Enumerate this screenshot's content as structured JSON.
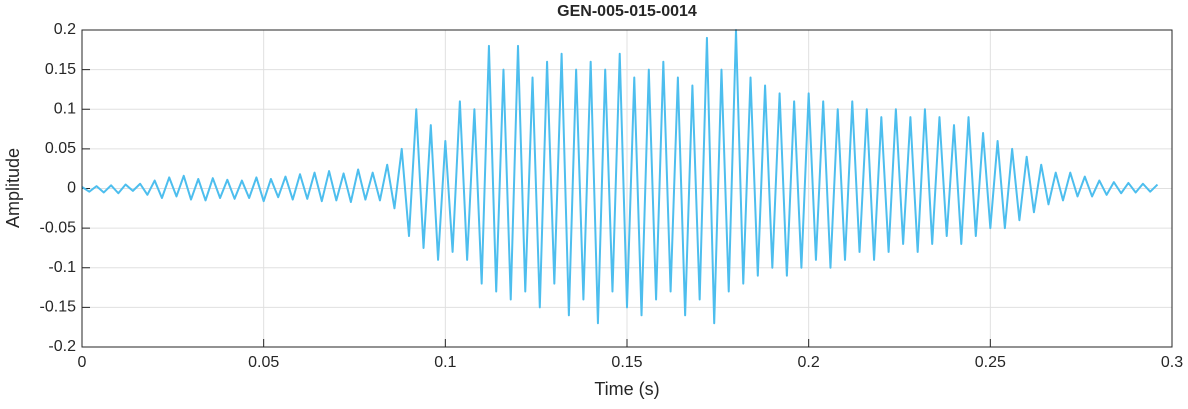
{
  "chart_data": {
    "type": "line",
    "title": "GEN-005-015-0014",
    "x_label": "Time (s)",
    "y_label": "Amplitude",
    "xlim": [
      0,
      0.3
    ],
    "xticks": [
      0,
      0.05,
      0.1,
      0.15,
      0.2,
      0.25,
      0.3
    ],
    "ylim": [
      -0.2,
      0.2
    ],
    "yticks": [
      -0.2,
      -0.15,
      -0.1,
      -0.05,
      0,
      0.05,
      0.1,
      0.15,
      0.2
    ],
    "grid": true,
    "x": [
      0,
      0.002,
      0.004,
      0.006,
      0.008,
      0.01,
      0.012,
      0.014,
      0.016,
      0.018,
      0.02,
      0.022,
      0.024,
      0.026,
      0.028,
      0.03,
      0.032,
      0.034,
      0.036,
      0.038,
      0.04,
      0.042,
      0.044,
      0.046,
      0.048,
      0.05,
      0.052,
      0.054,
      0.056,
      0.058,
      0.06,
      0.062,
      0.064,
      0.066,
      0.068,
      0.07,
      0.072,
      0.074,
      0.076,
      0.078,
      0.08,
      0.082,
      0.084,
      0.086,
      0.088,
      0.09,
      0.092,
      0.094,
      0.096,
      0.098,
      0.1,
      0.102,
      0.104,
      0.106,
      0.108,
      0.11,
      0.112,
      0.114,
      0.116,
      0.118,
      0.12,
      0.122,
      0.124,
      0.126,
      0.128,
      0.13,
      0.132,
      0.134,
      0.136,
      0.138,
      0.14,
      0.142,
      0.144,
      0.146,
      0.148,
      0.15,
      0.152,
      0.154,
      0.156,
      0.158,
      0.16,
      0.162,
      0.164,
      0.166,
      0.168,
      0.17,
      0.172,
      0.174,
      0.176,
      0.178,
      0.18,
      0.182,
      0.184,
      0.186,
      0.188,
      0.19,
      0.192,
      0.194,
      0.196,
      0.198,
      0.2,
      0.202,
      0.204,
      0.206,
      0.208,
      0.21,
      0.212,
      0.214,
      0.216,
      0.218,
      0.22,
      0.222,
      0.224,
      0.226,
      0.228,
      0.23,
      0.232,
      0.234,
      0.236,
      0.238,
      0.24,
      0.242,
      0.244,
      0.246,
      0.248,
      0.25,
      0.252,
      0.254,
      0.256,
      0.258,
      0.26,
      0.262,
      0.264,
      0.266,
      0.268,
      0.27,
      0.272,
      0.274,
      0.276,
      0.278,
      0.28,
      0.282,
      0.284,
      0.286,
      0.288,
      0.29,
      0.292,
      0.294,
      0.296
    ],
    "series": [
      {
        "color": "#4dbeee",
        "values": [
          0.002,
          -0.004,
          0.003,
          -0.005,
          0.004,
          -0.006,
          0.005,
          -0.003,
          0.006,
          -0.008,
          0.01,
          -0.012,
          0.014,
          -0.01,
          0.016,
          -0.014,
          0.012,
          -0.015,
          0.013,
          -0.012,
          0.011,
          -0.013,
          0.01,
          -0.012,
          0.014,
          -0.016,
          0.012,
          -0.011,
          0.015,
          -0.014,
          0.018,
          -0.013,
          0.02,
          -0.016,
          0.022,
          -0.015,
          0.019,
          -0.017,
          0.024,
          -0.014,
          0.02,
          -0.015,
          0.03,
          -0.025,
          0.05,
          -0.06,
          0.1,
          -0.075,
          0.08,
          -0.09,
          0.06,
          -0.08,
          0.11,
          -0.09,
          0.1,
          -0.12,
          0.18,
          -0.13,
          0.15,
          -0.14,
          0.18,
          -0.13,
          0.14,
          -0.15,
          0.16,
          -0.12,
          0.17,
          -0.16,
          0.15,
          -0.14,
          0.16,
          -0.17,
          0.15,
          -0.13,
          0.17,
          -0.15,
          0.14,
          -0.16,
          0.15,
          -0.14,
          0.16,
          -0.13,
          0.14,
          -0.16,
          0.13,
          -0.14,
          0.19,
          -0.17,
          0.15,
          -0.13,
          0.2,
          -0.12,
          0.14,
          -0.11,
          0.13,
          -0.1,
          0.12,
          -0.11,
          0.11,
          -0.1,
          0.12,
          -0.09,
          0.11,
          -0.1,
          0.1,
          -0.09,
          0.11,
          -0.08,
          0.1,
          -0.09,
          0.09,
          -0.08,
          0.1,
          -0.07,
          0.09,
          -0.08,
          0.1,
          -0.07,
          0.09,
          -0.06,
          0.08,
          -0.07,
          0.09,
          -0.06,
          0.07,
          -0.05,
          0.06,
          -0.05,
          0.05,
          -0.04,
          0.04,
          -0.03,
          0.03,
          -0.02,
          0.02,
          -0.015,
          0.02,
          -0.01,
          0.015,
          -0.01,
          0.01,
          -0.008,
          0.008,
          -0.006,
          0.007,
          -0.005,
          0.006,
          -0.004,
          0.005
        ]
      }
    ]
  }
}
